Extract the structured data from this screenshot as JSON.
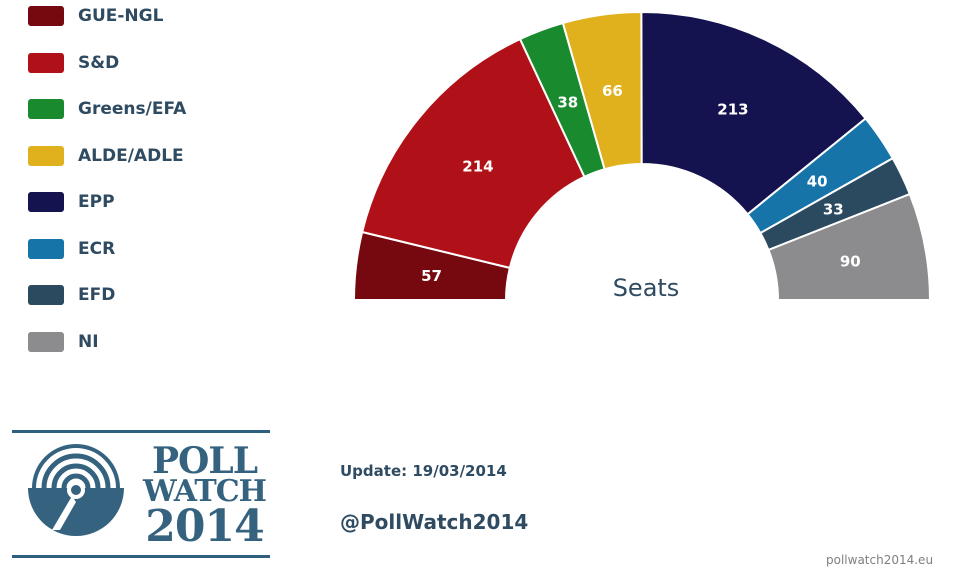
{
  "legend": [
    {
      "label": "GUE-NGL",
      "color": "#76090f"
    },
    {
      "label": "S&D",
      "color": "#b01119"
    },
    {
      "label": "Greens/EFA",
      "color": "#198a2e"
    },
    {
      "label": "ALDE/ADLE",
      "color": "#e1b01d"
    },
    {
      "label": "EPP",
      "color": "#14124f"
    },
    {
      "label": "ECR",
      "color": "#1674a8"
    },
    {
      "label": "EFD",
      "color": "#2b4a60"
    },
    {
      "label": "NI",
      "color": "#8c8c8e"
    }
  ],
  "chart_data": {
    "type": "pie",
    "subtype": "parliament-half-donut",
    "center_label": "Seats",
    "categories": [
      "GUE-NGL",
      "S&D",
      "Greens/EFA",
      "ALDE/ADLE",
      "EPP",
      "ECR",
      "EFD",
      "NI"
    ],
    "values": [
      57,
      214,
      38,
      66,
      213,
      40,
      33,
      90
    ],
    "colors": [
      "#76090f",
      "#b01119",
      "#198a2e",
      "#e1b01d",
      "#14124f",
      "#1674a8",
      "#2b4a60",
      "#8c8c8e"
    ]
  },
  "logo": {
    "line1": "POLL",
    "line2": "WATCH",
    "line3": "2014",
    "color": "#35627f"
  },
  "footer": {
    "update": "Update: 19/03/2014",
    "handle": "@PollWatch2014",
    "website": "pollwatch2014.eu"
  }
}
